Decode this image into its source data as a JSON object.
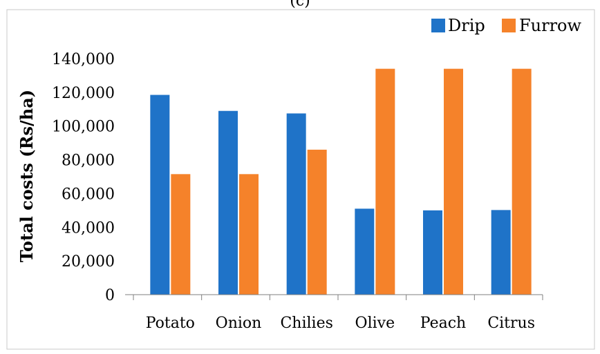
{
  "panel_label": "(c)",
  "chart_data": {
    "type": "bar",
    "title": "",
    "xlabel": "",
    "ylabel": "Total costs (Rs/ha)",
    "categories": [
      "Potato",
      "Onion",
      "Chilies",
      "Olive",
      "Peach",
      "Citrus"
    ],
    "series": [
      {
        "name": "Drip",
        "color": "#1f73c8",
        "values": [
          118500,
          109000,
          107500,
          51000,
          50000,
          50200
        ]
      },
      {
        "name": "Furrow",
        "color": "#f5822a",
        "values": [
          71500,
          71500,
          86000,
          134000,
          134000,
          134000
        ]
      }
    ],
    "ylim": [
      0,
      140000
    ],
    "yticks": [
      0,
      20000,
      40000,
      60000,
      80000,
      100000,
      120000,
      140000
    ],
    "ytick_labels": [
      "0",
      "20,000",
      "40,000",
      "60,000",
      "80,000",
      "100,000",
      "120,000",
      "140,000"
    ],
    "grid": false,
    "legend_position": "top-right"
  }
}
